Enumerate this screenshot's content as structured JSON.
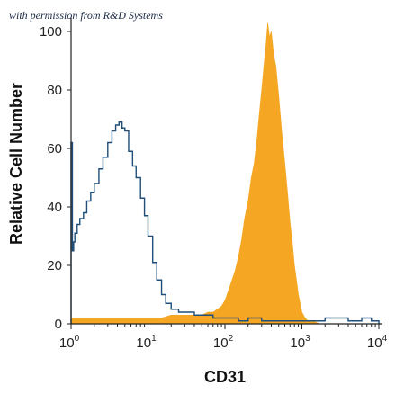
{
  "watermark": "with permission from R&D Systems",
  "chart_data": {
    "type": "area",
    "xscale": "log",
    "xlim": [
      1,
      10000
    ],
    "ylim": [
      0,
      105
    ],
    "xlabel": "CD31",
    "ylabel": "Relative Cell Number",
    "y_ticks": [
      "0",
      "20",
      "40",
      "60",
      "80",
      "100"
    ],
    "y_tick_values": [
      0,
      20,
      40,
      60,
      80,
      100
    ],
    "x_ticks": [
      {
        "value": 1,
        "base": "10",
        "exp": "0"
      },
      {
        "value": 10,
        "base": "10",
        "exp": "1"
      },
      {
        "value": 100,
        "base": "10",
        "exp": "2"
      },
      {
        "value": 1000,
        "base": "10",
        "exp": "3"
      },
      {
        "value": 10000,
        "base": "10",
        "exp": "4"
      }
    ],
    "grid": false,
    "series": [
      {
        "style": "step-outline",
        "color": "#1f4e79",
        "x": [
          1.0,
          1.04,
          1.08,
          1.12,
          1.2,
          1.3,
          1.45,
          1.6,
          1.8,
          2.0,
          2.3,
          2.6,
          3.0,
          3.4,
          3.8,
          4.2,
          4.6,
          5.0,
          5.6,
          6.3,
          7.0,
          8.0,
          9.0,
          10.0,
          11.5,
          13.0,
          15.0,
          17.0,
          20.0,
          25.0,
          30.0,
          40.0,
          50.0,
          70.0,
          100.0,
          150.0,
          200.0,
          300.0,
          500.0,
          700.0,
          1000.0,
          1500.0,
          2000.0,
          3000.0,
          4000.0,
          5000.0,
          6000.0,
          8000.0,
          10000.0
        ],
        "y": [
          62,
          25,
          28,
          31,
          34,
          36,
          38,
          42,
          45,
          48,
          53,
          57,
          62,
          66,
          68,
          69,
          67,
          66,
          59,
          54,
          50,
          43,
          37,
          30,
          21,
          15,
          10,
          7,
          5,
          4,
          4,
          3,
          3,
          2,
          2,
          1,
          2,
          1,
          1,
          1,
          1,
          1,
          2,
          2,
          1,
          1,
          2,
          1,
          0
        ]
      },
      {
        "style": "filled",
        "color": "#f5a623",
        "x": [
          1.0,
          1.5,
          2.0,
          3.0,
          5.0,
          8.0,
          10.0,
          15.0,
          20.0,
          30.0,
          40.0,
          50.0,
          60.0,
          70.0,
          80.0,
          90.0,
          100.0,
          110.0,
          120.0,
          135.0,
          150.0,
          165.0,
          180.0,
          200.0,
          220.0,
          240.0,
          260.0,
          280.0,
          300.0,
          320.0,
          340.0,
          360.0,
          380.0,
          400.0,
          430.0,
          460.0,
          500.0,
          550.0,
          600.0,
          650.0,
          700.0,
          750.0,
          800.0,
          850.0,
          900.0,
          950.0,
          1000.0,
          1100.0,
          1200.0,
          1400.0,
          1700.0,
          2000.0,
          3000.0,
          5000.0,
          10000.0
        ],
        "y": [
          2,
          2,
          2,
          2,
          2,
          2,
          2,
          2,
          3,
          3,
          3,
          3,
          4,
          4,
          5,
          6,
          8,
          11,
          14,
          18,
          23,
          29,
          36,
          42,
          50,
          55,
          63,
          72,
          80,
          88,
          95,
          103,
          98,
          100,
          92,
          88,
          78,
          65,
          55,
          45,
          35,
          28,
          20,
          15,
          10,
          7,
          4,
          2,
          1,
          1,
          0,
          0,
          0,
          0,
          0
        ]
      }
    ]
  }
}
